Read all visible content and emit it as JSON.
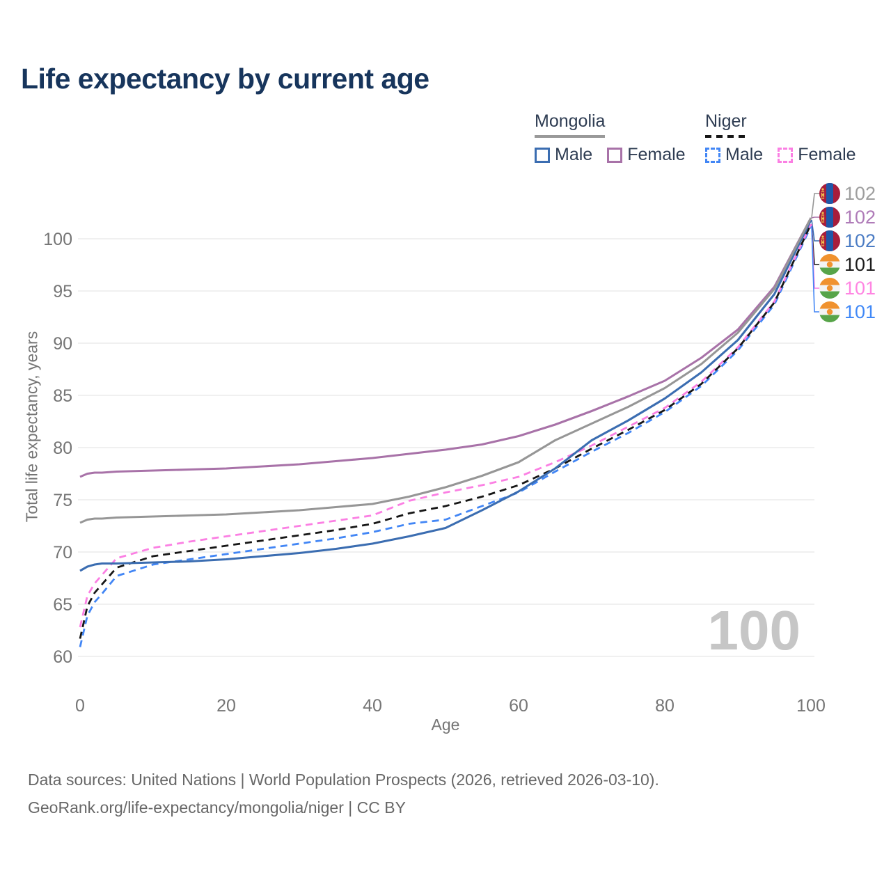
{
  "title": "Life expectancy by current age",
  "watermark": "100",
  "legend": {
    "groups": [
      {
        "name": "Mongolia",
        "underline_style": "solid",
        "underline_color": "#999999",
        "items": [
          {
            "label": "Male",
            "color": "#3b6db1",
            "style": "solid"
          },
          {
            "label": "Female",
            "color": "#a872a8",
            "style": "solid"
          }
        ]
      },
      {
        "name": "Niger",
        "underline_style": "dashed",
        "underline_color": "#161616",
        "items": [
          {
            "label": "Male",
            "color": "#4286f5",
            "style": "dashed"
          },
          {
            "label": "Female",
            "color": "#fb7fe3",
            "style": "dashed"
          }
        ]
      }
    ]
  },
  "footer": {
    "line1": "Data sources: United Nations | World Population Prospects (2026, retrieved 2026-03-10).",
    "line2": "GeoRank.org/life-expectancy/mongolia/niger | CC BY"
  },
  "chart_data": {
    "type": "line",
    "title": "Life expectancy by current age",
    "xlabel": "Age",
    "ylabel": "Total life expectancy, years",
    "xlim": [
      0,
      100
    ],
    "ylim": [
      60,
      102
    ],
    "x_ticks": [
      0,
      20,
      40,
      60,
      80,
      100
    ],
    "y_ticks": [
      60,
      65,
      70,
      75,
      80,
      85,
      90,
      95,
      100
    ],
    "grid": "horizontal",
    "grid_color": "#ececec",
    "x": [
      0,
      1,
      2,
      3,
      5,
      10,
      15,
      20,
      25,
      30,
      35,
      40,
      45,
      50,
      55,
      60,
      65,
      70,
      75,
      80,
      85,
      90,
      95,
      100
    ],
    "series": [
      {
        "id": "mongolia-both",
        "name": "Mongolia (both sexes)",
        "country": "Mongolia",
        "flag": "mongolia",
        "color": "#969696",
        "label_color": "#9e9e9e",
        "line_style": "solid",
        "end_label": "102",
        "values": [
          72.8,
          73.1,
          73.2,
          73.2,
          73.3,
          73.4,
          73.5,
          73.6,
          73.8,
          74.0,
          74.3,
          74.6,
          75.3,
          76.2,
          77.3,
          78.6,
          80.7,
          82.3,
          83.9,
          85.7,
          88.0,
          91.0,
          95.2,
          102.0
        ]
      },
      {
        "id": "mongolia-female",
        "name": "Mongolia Female",
        "country": "Mongolia",
        "flag": "mongolia",
        "color": "#a872a8",
        "label_color": "#af7bb8",
        "line_style": "solid",
        "end_label": "102",
        "values": [
          77.2,
          77.5,
          77.6,
          77.6,
          77.7,
          77.8,
          77.9,
          78.0,
          78.2,
          78.4,
          78.7,
          79.0,
          79.4,
          79.8,
          80.3,
          81.1,
          82.2,
          83.5,
          84.9,
          86.4,
          88.6,
          91.3,
          95.4,
          102.0
        ]
      },
      {
        "id": "mongolia-male",
        "name": "Mongolia Male",
        "country": "Mongolia",
        "flag": "mongolia",
        "color": "#3b6db1",
        "label_color": "#4b7cc4",
        "line_style": "solid",
        "end_label": "102",
        "values": [
          68.2,
          68.6,
          68.8,
          68.9,
          68.9,
          69.0,
          69.1,
          69.3,
          69.6,
          69.9,
          70.3,
          70.8,
          71.5,
          72.3,
          74.0,
          75.8,
          78.0,
          80.7,
          82.6,
          84.7,
          87.2,
          90.3,
          94.7,
          101.8
        ]
      },
      {
        "id": "niger-both",
        "name": "Niger (both sexes)",
        "country": "Niger",
        "flag": "niger",
        "color": "#161616",
        "label_color": "#1c1c1c",
        "line_style": "dashed",
        "end_label": "101",
        "values": [
          61.7,
          64.8,
          66.1,
          66.9,
          68.5,
          69.6,
          70.1,
          70.6,
          71.1,
          71.6,
          72.1,
          72.7,
          73.7,
          74.4,
          75.3,
          76.4,
          78.0,
          79.9,
          81.7,
          83.6,
          86.1,
          89.5,
          93.9,
          101.4
        ]
      },
      {
        "id": "niger-female",
        "name": "Niger Female",
        "country": "Niger",
        "flag": "niger",
        "color": "#fb7fe3",
        "label_color": "#ff85e2",
        "line_style": "dashed",
        "end_label": "101",
        "values": [
          62.8,
          65.8,
          67.0,
          67.8,
          69.4,
          70.4,
          71.0,
          71.5,
          72.0,
          72.5,
          73.0,
          73.5,
          74.9,
          75.7,
          76.4,
          77.2,
          78.6,
          80.2,
          82.0,
          83.8,
          86.3,
          89.6,
          94.0,
          101.4
        ]
      },
      {
        "id": "niger-male",
        "name": "Niger Male",
        "country": "Niger",
        "flag": "niger",
        "color": "#4286f5",
        "label_color": "#4189f7",
        "line_style": "dashed",
        "end_label": "101",
        "values": [
          60.9,
          63.9,
          65.2,
          66.0,
          67.7,
          68.8,
          69.3,
          69.8,
          70.3,
          70.8,
          71.3,
          71.9,
          72.7,
          73.1,
          74.4,
          75.7,
          77.7,
          79.6,
          81.4,
          83.4,
          85.9,
          89.3,
          93.7,
          101.2
        ]
      }
    ]
  }
}
